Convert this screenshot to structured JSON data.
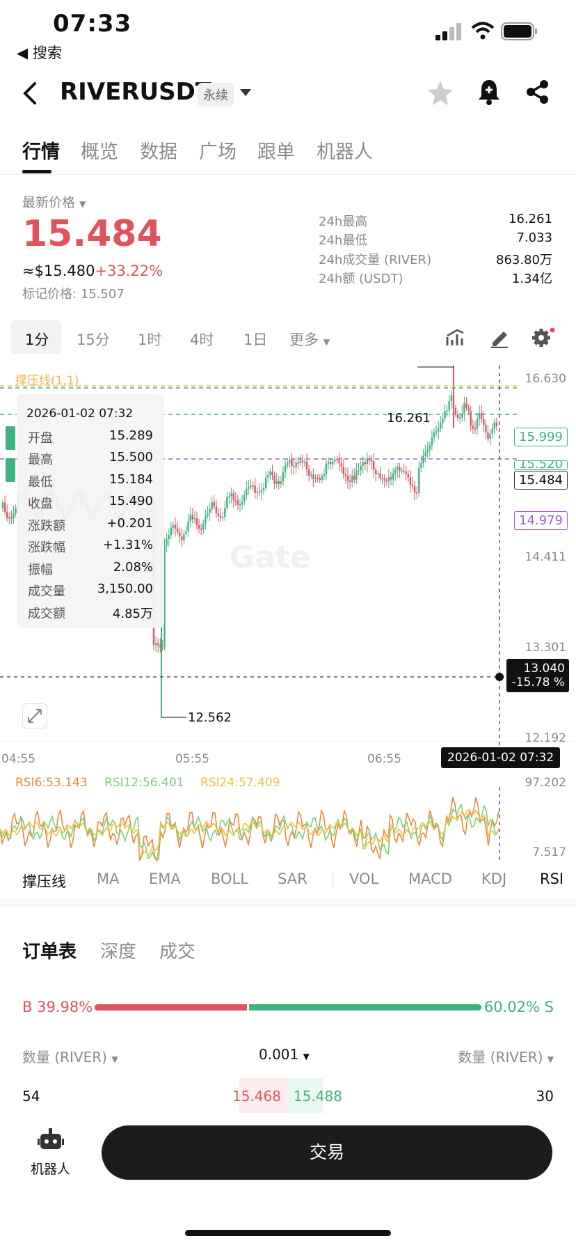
{
  "status_bar": {
    "time": "07:33",
    "back_label": "◀ 搜索"
  },
  "header": {
    "symbol": "RIVERUSDT",
    "contract_type": "永续"
  },
  "tabs": [
    {
      "label": "行情",
      "active": true
    },
    {
      "label": "概览"
    },
    {
      "label": "数据"
    },
    {
      "label": "广场"
    },
    {
      "label": "跟单"
    },
    {
      "label": "机器人"
    }
  ],
  "price": {
    "label": "最新价格",
    "last": "15.484",
    "usd": "≈$15.480",
    "change": "+33.22%",
    "mark_label": "标记价格: 15.507"
  },
  "stats": [
    {
      "label": "24h最高",
      "value": "16.261"
    },
    {
      "label": "24h最低",
      "value": "7.033"
    },
    {
      "label": "24h成交量 (RIVER)",
      "value": "863.80万"
    },
    {
      "label": "24h额 (USDT)",
      "value": "1.34亿"
    }
  ],
  "intervals": [
    {
      "label": "1分",
      "active": true
    },
    {
      "label": "15分"
    },
    {
      "label": "1时"
    },
    {
      "label": "4时"
    },
    {
      "label": "1日"
    },
    {
      "label": "更多"
    }
  ],
  "chart": {
    "indicator_label": "撑压线(1,1)",
    "y_ticks": [
      "16.630",
      "14.411",
      "13.301",
      "12.192"
    ],
    "x_ticks": [
      "04:55",
      "05:55",
      "06:55"
    ],
    "high_label": "16.261",
    "low_label": "12.562",
    "tag_upper": "15.999",
    "tag_last": "15.484",
    "tag_lower": "14.979",
    "tag_partial": "15.520",
    "crosshair_price": "13.040",
    "crosshair_pct": "-15.78 %",
    "crosshair_time": "2026-01-02 07:32",
    "watermark": "Gate",
    "colors": {
      "up": "#3fb27f",
      "down": "#e0535e",
      "teal": "#3fb27f",
      "purple": "#a05ad8",
      "yellow": "#f0c040"
    }
  },
  "tooltip": {
    "time": "2026-01-02 07:32",
    "rows": [
      {
        "label": "开盘",
        "value": "15.289"
      },
      {
        "label": "最高",
        "value": "15.500"
      },
      {
        "label": "最低",
        "value": "15.184"
      },
      {
        "label": "收盘",
        "value": "15.490"
      },
      {
        "label": "涨跌额",
        "value": "+0.201"
      },
      {
        "label": "涨跌幅",
        "value": "+1.31%"
      },
      {
        "label": "振幅",
        "value": "2.08%"
      },
      {
        "label": "成交量",
        "value": "3,150.00"
      },
      {
        "label": "成交额",
        "value": "4.85万"
      }
    ]
  },
  "rsi": {
    "rsi6": "RSI6:53.143",
    "rsi12": "RSI12:56.401",
    "rsi24": "RSI24:57.409",
    "top": "97.202",
    "bottom": "7.517"
  },
  "indicators": [
    "撑压线",
    "MA",
    "EMA",
    "BOLL",
    "SAR",
    "VOL",
    "MACD",
    "KDJ",
    "RSI"
  ],
  "orderbook": {
    "tabs": [
      "订单表",
      "深度",
      "成交"
    ],
    "buy_pct": "B 39.98%",
    "sell_pct": "60.02% S",
    "buy_ratio": 0.3998,
    "qty_left": "数量 (RIVER)",
    "precision": "0.001",
    "qty_right": "数量 (RIVER)",
    "row": {
      "bid_qty": "54",
      "bid_price": "15.468",
      "ask_price": "15.488",
      "ask_qty": "30"
    }
  },
  "bottom": {
    "robot_label": "机器人",
    "trade_label": "交易"
  }
}
